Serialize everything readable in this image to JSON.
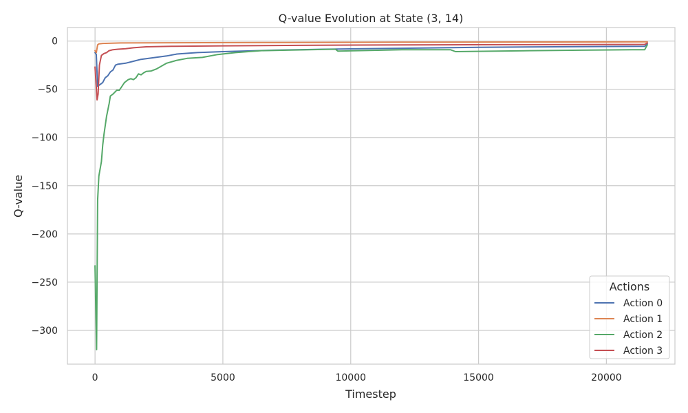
{
  "chart_data": {
    "type": "line",
    "title": "Q-value Evolution at State (3, 14)",
    "xlabel": "Timestep",
    "ylabel": "Q-value",
    "xlim": [
      -1080,
      22680
    ],
    "ylim": [
      -335,
      14
    ],
    "xticks": [
      0,
      5000,
      10000,
      15000,
      20000
    ],
    "yticks": [
      0,
      -50,
      -100,
      -150,
      -200,
      -250,
      -300
    ],
    "grid": true,
    "legend": {
      "title": "Actions",
      "placement": "bottom-right"
    },
    "series": [
      {
        "name": "Action 0",
        "color": "#4c72b0",
        "points": [
          [
            0,
            -12
          ],
          [
            50,
            -14
          ],
          [
            100,
            -47
          ],
          [
            150,
            -46
          ],
          [
            300,
            -43
          ],
          [
            400,
            -38
          ],
          [
            500,
            -36
          ],
          [
            600,
            -32
          ],
          [
            700,
            -30
          ],
          [
            800,
            -25
          ],
          [
            900,
            -24
          ],
          [
            1200,
            -23
          ],
          [
            1500,
            -21
          ],
          [
            1800,
            -19
          ],
          [
            2100,
            -18
          ],
          [
            2500,
            -16.5
          ],
          [
            2800,
            -15.5
          ],
          [
            3200,
            -13.5
          ],
          [
            4000,
            -12
          ],
          [
            5000,
            -11
          ],
          [
            7000,
            -9.5
          ],
          [
            9000,
            -8.5
          ],
          [
            12000,
            -7.5
          ],
          [
            15000,
            -6.5
          ],
          [
            18000,
            -6
          ],
          [
            21500,
            -5.5
          ],
          [
            21600,
            -3
          ]
        ]
      },
      {
        "name": "Action 1",
        "color": "#dd8452",
        "points": [
          [
            0,
            -10
          ],
          [
            50,
            -12
          ],
          [
            100,
            -4
          ],
          [
            150,
            -3
          ],
          [
            300,
            -2.5
          ],
          [
            1000,
            -2
          ],
          [
            3000,
            -1.8
          ],
          [
            7000,
            -1.5
          ],
          [
            12000,
            -1.2
          ],
          [
            18000,
            -1
          ],
          [
            21600,
            -0.8
          ]
        ]
      },
      {
        "name": "Action 2",
        "color": "#55a868",
        "points": [
          [
            0,
            -233
          ],
          [
            30,
            -280
          ],
          [
            60,
            -320
          ],
          [
            100,
            -165
          ],
          [
            150,
            -140
          ],
          [
            250,
            -125
          ],
          [
            300,
            -108
          ],
          [
            350,
            -97
          ],
          [
            450,
            -78
          ],
          [
            550,
            -65
          ],
          [
            600,
            -57
          ],
          [
            700,
            -55
          ],
          [
            850,
            -51
          ],
          [
            950,
            -51
          ],
          [
            1050,
            -47
          ],
          [
            1150,
            -43
          ],
          [
            1300,
            -40
          ],
          [
            1400,
            -39
          ],
          [
            1500,
            -40
          ],
          [
            1600,
            -38
          ],
          [
            1700,
            -34
          ],
          [
            1800,
            -35
          ],
          [
            1900,
            -33
          ],
          [
            2000,
            -31.5
          ],
          [
            2200,
            -31
          ],
          [
            2400,
            -29
          ],
          [
            2600,
            -26
          ],
          [
            2800,
            -23
          ],
          [
            3200,
            -20
          ],
          [
            3600,
            -18
          ],
          [
            4200,
            -17
          ],
          [
            4800,
            -14
          ],
          [
            5500,
            -12
          ],
          [
            6500,
            -10
          ],
          [
            7500,
            -9.5
          ],
          [
            9400,
            -8.5
          ],
          [
            9500,
            -10.5
          ],
          [
            12000,
            -9
          ],
          [
            13900,
            -9
          ],
          [
            14100,
            -11
          ],
          [
            17000,
            -10
          ],
          [
            19000,
            -9.5
          ],
          [
            21000,
            -9
          ],
          [
            21500,
            -9
          ],
          [
            21600,
            -4
          ]
        ]
      },
      {
        "name": "Action 3",
        "color": "#c44e52",
        "points": [
          [
            0,
            -27
          ],
          [
            50,
            -48
          ],
          [
            80,
            -61
          ],
          [
            120,
            -55
          ],
          [
            170,
            -25
          ],
          [
            250,
            -15
          ],
          [
            350,
            -13
          ],
          [
            450,
            -12
          ],
          [
            550,
            -10
          ],
          [
            700,
            -9
          ],
          [
            900,
            -8.5
          ],
          [
            1200,
            -8
          ],
          [
            1500,
            -7
          ],
          [
            2000,
            -6
          ],
          [
            3000,
            -5.5
          ],
          [
            5000,
            -5
          ],
          [
            8000,
            -4.5
          ],
          [
            12000,
            -4
          ],
          [
            16000,
            -3.8
          ],
          [
            21500,
            -3.5
          ],
          [
            21600,
            -2
          ]
        ]
      }
    ]
  }
}
